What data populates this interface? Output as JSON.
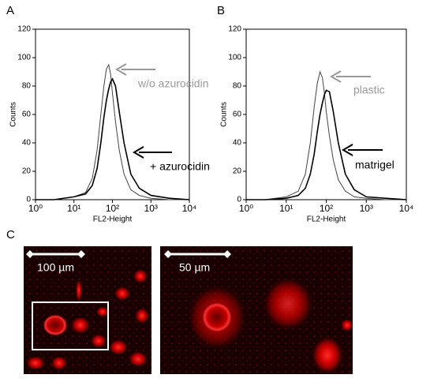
{
  "panel_labels": [
    "A",
    "B",
    "C"
  ],
  "chart_data": [
    {
      "type": "line",
      "xlabel": "FL2-Height",
      "ylabel": "Counts",
      "xscale": "log",
      "x": [
        1,
        3,
        10,
        20,
        30,
        40,
        50,
        60,
        70,
        80,
        90,
        100,
        120,
        150,
        200,
        300,
        500,
        1000,
        3000,
        10000
      ],
      "series": [
        {
          "name": "w/o azurocidin",
          "color": "#999999",
          "values": [
            0,
            0,
            2,
            5,
            15,
            35,
            60,
            80,
            92,
            95,
            88,
            75,
            55,
            35,
            18,
            7,
            3,
            1,
            0,
            0
          ]
        },
        {
          "name": "+ azurocidin",
          "color": "#000000",
          "values": [
            0,
            0,
            2,
            4,
            10,
            22,
            40,
            58,
            70,
            78,
            83,
            85,
            80,
            62,
            40,
            18,
            8,
            3,
            1,
            0
          ]
        }
      ],
      "xlim": [
        1,
        10000
      ],
      "xticks": [
        {
          "value": 1,
          "label": "10⁰"
        },
        {
          "value": 10,
          "label": "10¹"
        },
        {
          "value": 100,
          "label": "10²"
        },
        {
          "value": 1000,
          "label": "10³"
        },
        {
          "value": 10000,
          "label": "10⁴"
        }
      ],
      "ylim": [
        0,
        120
      ],
      "yticks": [
        0,
        20,
        40,
        60,
        80,
        100,
        120
      ]
    },
    {
      "type": "line",
      "xlabel": "FL2-Height",
      "ylabel": "Counts",
      "xscale": "log",
      "x": [
        1,
        3,
        10,
        20,
        30,
        40,
        50,
        60,
        70,
        80,
        90,
        100,
        120,
        150,
        200,
        300,
        500,
        1000,
        3000,
        10000
      ],
      "series": [
        {
          "name": "plastic",
          "color": "#999999",
          "values": [
            0,
            0,
            2,
            6,
            18,
            40,
            65,
            82,
            90,
            86,
            75,
            62,
            45,
            28,
            14,
            6,
            2,
            1,
            0,
            0
          ]
        },
        {
          "name": "matrigel",
          "color": "#000000",
          "values": [
            0,
            0,
            1,
            3,
            8,
            18,
            32,
            48,
            60,
            68,
            74,
            77,
            76,
            62,
            40,
            18,
            7,
            2,
            1,
            0
          ]
        }
      ],
      "xlim": [
        1,
        10000
      ],
      "xticks": [
        {
          "value": 1,
          "label": "10⁰"
        },
        {
          "value": 10,
          "label": "10¹"
        },
        {
          "value": 100,
          "label": "10²"
        },
        {
          "value": 1000,
          "label": "10³"
        },
        {
          "value": 10000,
          "label": "10⁴"
        }
      ],
      "ylim": [
        0,
        120
      ],
      "yticks": [
        0,
        20,
        40,
        60,
        80,
        100,
        120
      ]
    }
  ],
  "images": [
    {
      "scale_label": "100 µm"
    },
    {
      "scale_label": "50 µm"
    }
  ]
}
